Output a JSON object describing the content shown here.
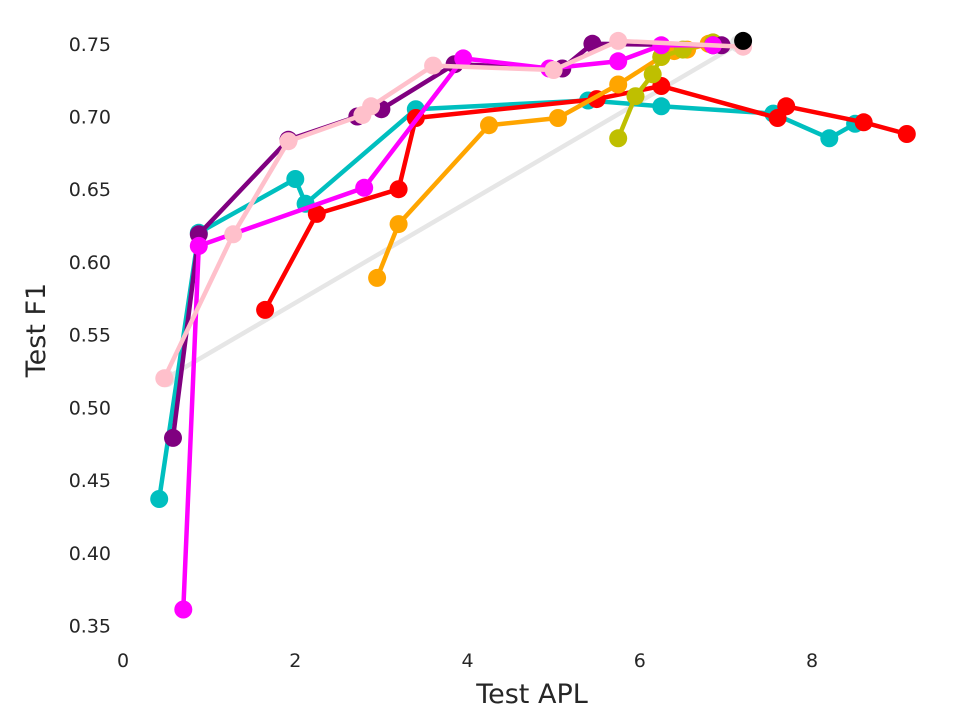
{
  "chart_data": {
    "type": "line",
    "title": "",
    "xlabel": "Test APL",
    "ylabel": "Test F1",
    "xlim": [
      0,
      9.3
    ],
    "ylim": [
      0.34,
      0.765
    ],
    "x_ticks": [
      0,
      2,
      4,
      6,
      8
    ],
    "x_tick_labels": [
      "0",
      "2",
      "4",
      "6",
      "8"
    ],
    "y_ticks": [
      0.35,
      0.4,
      0.45,
      0.5,
      0.55,
      0.6,
      0.65,
      0.7,
      0.75
    ],
    "y_tick_labels": [
      "0.35",
      "0.40",
      "0.45",
      "0.50",
      "0.55",
      "0.60",
      "0.65",
      "0.70",
      "0.75"
    ],
    "grid": false,
    "legend": false,
    "series": [
      {
        "color": "#e6e6e6",
        "points": [
          [
            0.5,
            0.52
          ],
          [
            7.15,
            0.75
          ]
        ]
      },
      {
        "color": "#00bfbf",
        "points": [
          [
            0.42,
            0.437
          ],
          [
            0.88,
            0.62
          ],
          [
            2.0,
            0.657
          ],
          [
            2.12,
            0.64
          ],
          [
            3.4,
            0.705
          ],
          [
            5.4,
            0.711
          ],
          [
            6.25,
            0.707
          ],
          [
            7.55,
            0.702
          ],
          [
            8.2,
            0.685
          ],
          [
            8.5,
            0.695
          ]
        ]
      },
      {
        "color": "#ff0000",
        "points": [
          [
            1.65,
            0.567
          ],
          [
            2.25,
            0.633
          ],
          [
            3.2,
            0.65
          ],
          [
            3.4,
            0.699
          ],
          [
            5.5,
            0.712
          ],
          [
            6.25,
            0.721
          ],
          [
            7.6,
            0.699
          ],
          [
            7.7,
            0.707
          ],
          [
            8.6,
            0.696
          ],
          [
            9.1,
            0.688
          ]
        ]
      },
      {
        "color": "#ffa500",
        "points": [
          [
            2.95,
            0.589
          ],
          [
            3.2,
            0.626
          ],
          [
            4.25,
            0.694
          ],
          [
            5.05,
            0.699
          ],
          [
            5.75,
            0.722
          ],
          [
            6.25,
            0.741
          ],
          [
            6.4,
            0.745
          ],
          [
            6.55,
            0.746
          ],
          [
            6.8,
            0.75
          ]
        ]
      },
      {
        "color": "#bfbf00",
        "points": [
          [
            5.75,
            0.685
          ],
          [
            5.95,
            0.714
          ],
          [
            6.15,
            0.729
          ],
          [
            6.25,
            0.741
          ],
          [
            6.5,
            0.746
          ],
          [
            6.85,
            0.751
          ]
        ]
      },
      {
        "color": "#800080",
        "points": [
          [
            0.58,
            0.479
          ],
          [
            0.88,
            0.619
          ],
          [
            1.92,
            0.684
          ],
          [
            2.72,
            0.7
          ],
          [
            3.0,
            0.705
          ],
          [
            3.85,
            0.736
          ],
          [
            5.1,
            0.733
          ],
          [
            5.45,
            0.75
          ],
          [
            6.85,
            0.749
          ],
          [
            6.95,
            0.749
          ]
        ]
      },
      {
        "color": "#ff00ff",
        "points": [
          [
            0.7,
            0.361
          ],
          [
            0.88,
            0.611
          ],
          [
            2.8,
            0.651
          ],
          [
            3.95,
            0.74
          ],
          [
            4.95,
            0.733
          ],
          [
            5.75,
            0.738
          ],
          [
            6.25,
            0.749
          ],
          [
            6.85,
            0.749
          ]
        ]
      },
      {
        "color": "#ffc0cb",
        "points": [
          [
            0.48,
            0.52
          ],
          [
            1.28,
            0.619
          ],
          [
            1.92,
            0.683
          ],
          [
            2.78,
            0.701
          ],
          [
            2.88,
            0.707
          ],
          [
            3.6,
            0.735
          ],
          [
            5.0,
            0.732
          ],
          [
            5.75,
            0.752
          ],
          [
            7.2,
            0.748
          ]
        ]
      },
      {
        "color": "#000000",
        "points": [
          [
            7.2,
            0.752
          ]
        ]
      }
    ]
  }
}
